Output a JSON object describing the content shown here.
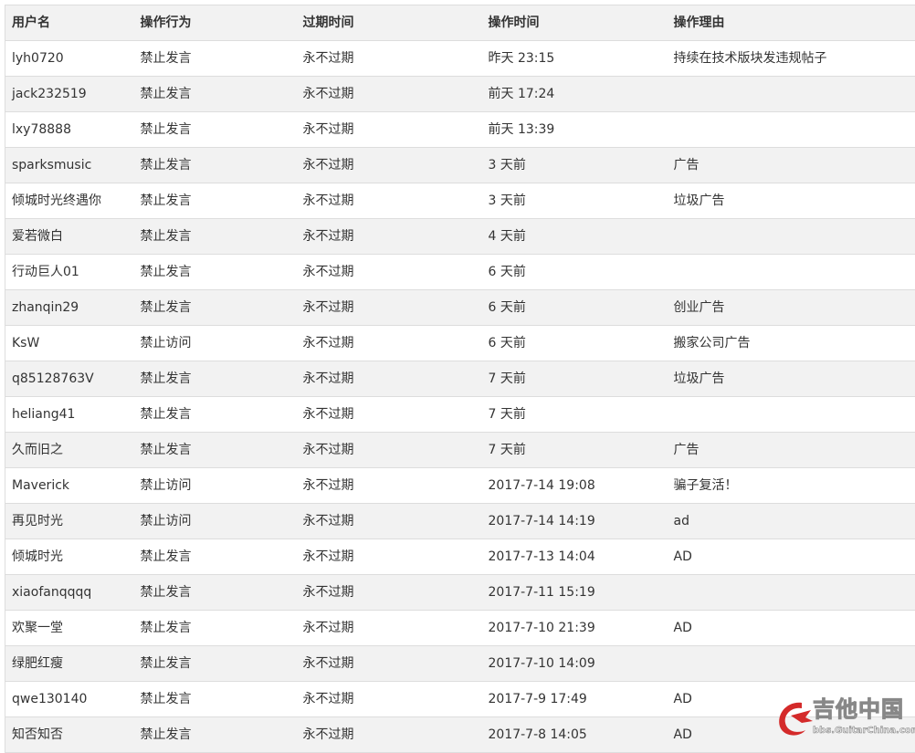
{
  "headers": [
    "用户名",
    "操作行为",
    "过期时间",
    "操作时间",
    "操作理由"
  ],
  "rows": [
    [
      "lyh0720",
      "禁止发言",
      "永不过期",
      "昨天 23:15",
      "持续在技术版块发违规帖子"
    ],
    [
      "jack232519",
      "禁止发言",
      "永不过期",
      "前天 17:24",
      ""
    ],
    [
      "lxy78888",
      "禁止发言",
      "永不过期",
      "前天 13:39",
      ""
    ],
    [
      "sparksmusic",
      "禁止发言",
      "永不过期",
      "3 天前",
      "广告"
    ],
    [
      "倾城时光终遇你",
      "禁止发言",
      "永不过期",
      "3 天前",
      "垃圾广告"
    ],
    [
      "爱若微白",
      "禁止发言",
      "永不过期",
      "4 天前",
      ""
    ],
    [
      "行动巨人01",
      "禁止发言",
      "永不过期",
      "6 天前",
      ""
    ],
    [
      "zhanqin29",
      "禁止发言",
      "永不过期",
      "6 天前",
      "创业广告"
    ],
    [
      "KsW",
      "禁止访问",
      "永不过期",
      "6 天前",
      "搬家公司广告"
    ],
    [
      "q85128763V",
      "禁止发言",
      "永不过期",
      "7 天前",
      "垃圾广告"
    ],
    [
      "heliang41",
      "禁止发言",
      "永不过期",
      "7 天前",
      ""
    ],
    [
      "久而旧之",
      "禁止发言",
      "永不过期",
      "7 天前",
      "广告"
    ],
    [
      "Maverick",
      "禁止访问",
      "永不过期",
      "2017-7-14 19:08",
      "骗子复活！"
    ],
    [
      "再见时光",
      "禁止访问",
      "永不过期",
      "2017-7-14 14:19",
      "ad"
    ],
    [
      "倾城时光",
      "禁止发言",
      "永不过期",
      "2017-7-13 14:04",
      "AD"
    ],
    [
      "xiaofanqqqq",
      "禁止发言",
      "永不过期",
      "2017-7-11 15:19",
      ""
    ],
    [
      "欢聚一堂",
      "禁止发言",
      "永不过期",
      "2017-7-10 21:39",
      "AD"
    ],
    [
      "绿肥红瘦",
      "禁止发言",
      "永不过期",
      "2017-7-10 14:09",
      ""
    ],
    [
      "qwe130140",
      "禁止发言",
      "永不过期",
      "2017-7-9 17:49",
      "AD"
    ],
    [
      "知否知否",
      "禁止发言",
      "永不过期",
      "2017-7-8 14:05",
      "AD"
    ]
  ],
  "watermark": {
    "title": "吉他中国",
    "url": "bbs.GuitarChina.com",
    "icon": "dragon-logo-icon",
    "color": "#d42a2a"
  }
}
